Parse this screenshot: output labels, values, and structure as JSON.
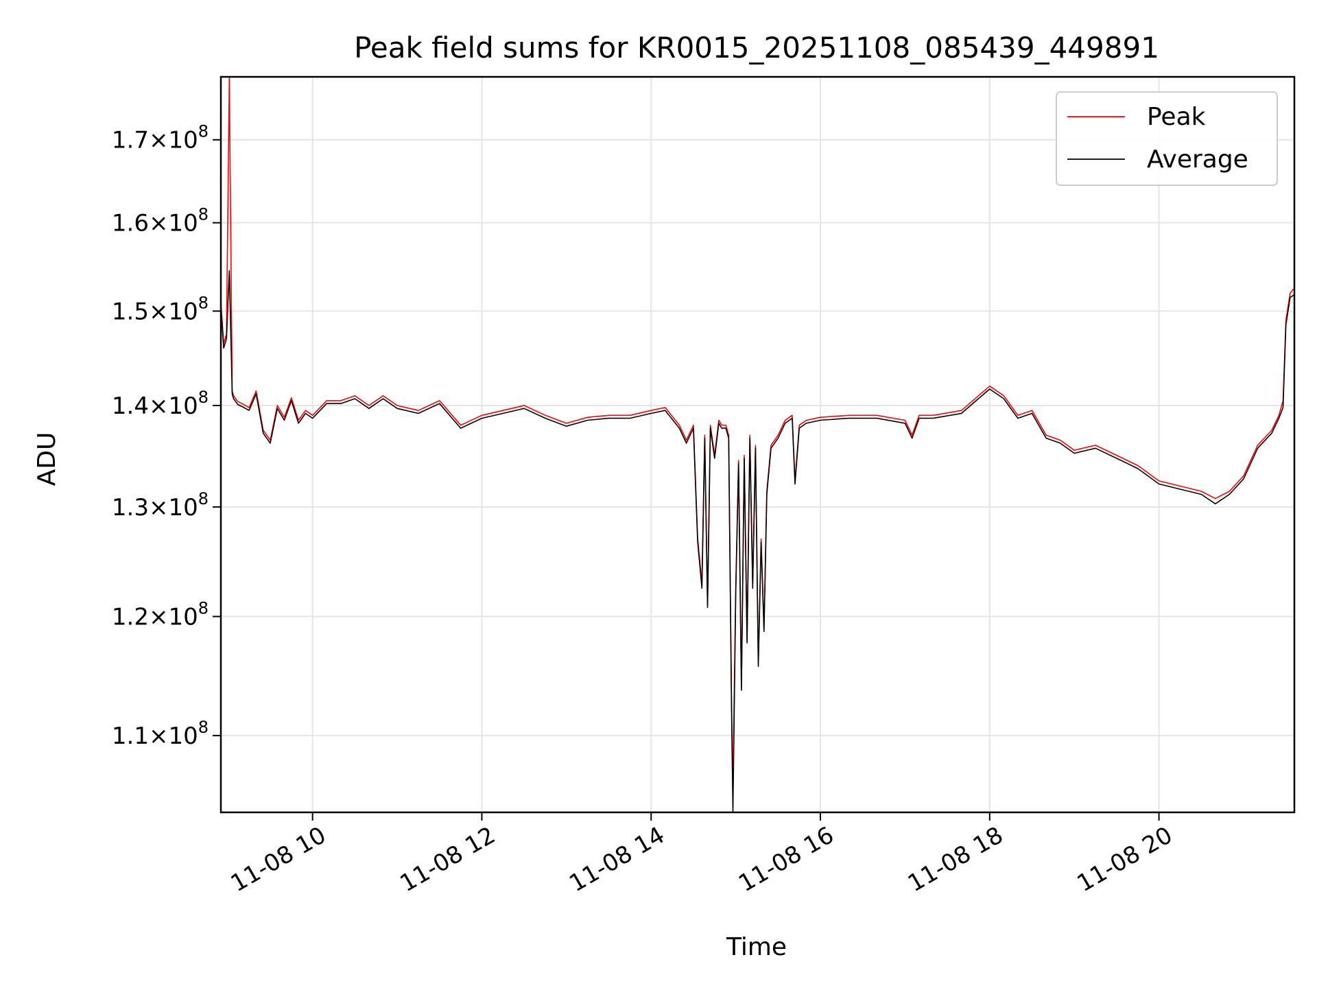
{
  "chart_data": {
    "type": "line",
    "title": "Peak field sums for KR0015_20251108_085439_449891",
    "xlabel": "Time",
    "ylabel": "ADU",
    "x_range": [
      "2025-11-08 08:55",
      "2025-11-08 21:36"
    ],
    "ylim": [
      104000000,
      178000000
    ],
    "yscale": "log",
    "grid": true,
    "legend_position": "upper right",
    "x_ticks": [
      "11-08 10",
      "11-08 12",
      "11-08 14",
      "11-08 16",
      "11-08 18",
      "11-08 20"
    ],
    "y_ticks": [
      {
        "value": 110000000,
        "mantissa": "1.1",
        "exponent": "8"
      },
      {
        "value": 120000000,
        "mantissa": "1.2",
        "exponent": "8"
      },
      {
        "value": 130000000,
        "mantissa": "1.3",
        "exponent": "8"
      },
      {
        "value": 140000000,
        "mantissa": "1.4",
        "exponent": "8"
      },
      {
        "value": 150000000,
        "mantissa": "1.5",
        "exponent": "8"
      },
      {
        "value": 160000000,
        "mantissa": "1.6",
        "exponent": "8"
      },
      {
        "value": 170000000,
        "mantissa": "1.7",
        "exponent": "8"
      }
    ],
    "series": [
      {
        "name": "Peak",
        "color": "#ff0000",
        "x": [
          "08:55",
          "08:57",
          "08:59",
          "09:01",
          "09:03",
          "09:04",
          "09:05",
          "09:06",
          "09:07",
          "09:10",
          "09:15",
          "09:20",
          "09:25",
          "09:30",
          "09:35",
          "09:40",
          "09:45",
          "09:50",
          "09:55",
          "10:00",
          "10:10",
          "10:20",
          "10:30",
          "10:40",
          "10:50",
          "11:00",
          "11:15",
          "11:30",
          "11:45",
          "12:00",
          "12:15",
          "12:30",
          "12:45",
          "13:00",
          "13:15",
          "13:30",
          "13:45",
          "14:00",
          "14:10",
          "14:20",
          "14:25",
          "14:30",
          "14:33",
          "14:36",
          "14:38",
          "14:40",
          "14:42",
          "14:45",
          "14:48",
          "14:50",
          "14:53",
          "14:55",
          "14:57",
          "14:58",
          "15:00",
          "15:02",
          "15:04",
          "15:06",
          "15:08",
          "15:10",
          "15:12",
          "15:14",
          "15:16",
          "15:18",
          "15:20",
          "15:22",
          "15:25",
          "15:30",
          "15:35",
          "15:40",
          "15:42",
          "15:45",
          "15:50",
          "16:00",
          "16:20",
          "16:40",
          "17:00",
          "17:05",
          "17:10",
          "17:20",
          "17:40",
          "18:00",
          "18:10",
          "18:20",
          "18:30",
          "18:40",
          "18:50",
          "19:00",
          "19:15",
          "19:30",
          "19:45",
          "20:00",
          "20:15",
          "20:30",
          "20:40",
          "20:50",
          "21:00",
          "21:10",
          "21:20",
          "21:25",
          "21:28",
          "21:30",
          "21:33",
          "21:36"
        ],
        "y": [
          151000000,
          146500000,
          147500000,
          178000000,
          141500000,
          141000000,
          140800000,
          140600000,
          140400000,
          140200000,
          139800000,
          141500000,
          137500000,
          136500000,
          140000000,
          138800000,
          140800000,
          138500000,
          139500000,
          139000000,
          140500000,
          140500000,
          141000000,
          140000000,
          141000000,
          140000000,
          139500000,
          140500000,
          138000000,
          139000000,
          139500000,
          140000000,
          139000000,
          138200000,
          138800000,
          139000000,
          139000000,
          139500000,
          139800000,
          138000000,
          136500000,
          138000000,
          127000000,
          123000000,
          137000000,
          121000000,
          138000000,
          135000000,
          138500000,
          138000000,
          138000000,
          137000000,
          112500000,
          106000000,
          122500000,
          134500000,
          114000000,
          135000000,
          118000000,
          137000000,
          123000000,
          136000000,
          116000000,
          127000000,
          119000000,
          131500000,
          136000000,
          137000000,
          138500000,
          139000000,
          132500000,
          138000000,
          138500000,
          138800000,
          139000000,
          139000000,
          138500000,
          137000000,
          139000000,
          139000000,
          139500000,
          142000000,
          141000000,
          139000000,
          139500000,
          137000000,
          136500000,
          135500000,
          136000000,
          135000000,
          134000000,
          132500000,
          132000000,
          131500000,
          130800000,
          131500000,
          133000000,
          136000000,
          137500000,
          139000000,
          140500000,
          149000000,
          152000000,
          152500000
        ]
      },
      {
        "name": "Average",
        "color": "#000000",
        "x": [
          "08:55",
          "08:57",
          "08:59",
          "09:01",
          "09:03",
          "09:04",
          "09:05",
          "09:06",
          "09:07",
          "09:10",
          "09:15",
          "09:20",
          "09:25",
          "09:30",
          "09:35",
          "09:40",
          "09:45",
          "09:50",
          "09:55",
          "10:00",
          "10:10",
          "10:20",
          "10:30",
          "10:40",
          "10:50",
          "11:00",
          "11:15",
          "11:30",
          "11:45",
          "12:00",
          "12:15",
          "12:30",
          "12:45",
          "13:00",
          "13:15",
          "13:30",
          "13:45",
          "14:00",
          "14:10",
          "14:20",
          "14:25",
          "14:30",
          "14:33",
          "14:36",
          "14:38",
          "14:40",
          "14:42",
          "14:45",
          "14:48",
          "14:50",
          "14:53",
          "14:55",
          "14:57",
          "14:58",
          "15:00",
          "15:02",
          "15:04",
          "15:06",
          "15:08",
          "15:10",
          "15:12",
          "15:14",
          "15:16",
          "15:18",
          "15:20",
          "15:22",
          "15:25",
          "15:30",
          "15:35",
          "15:40",
          "15:42",
          "15:45",
          "15:50",
          "16:00",
          "16:20",
          "16:40",
          "17:00",
          "17:05",
          "17:10",
          "17:20",
          "17:40",
          "18:00",
          "18:10",
          "18:20",
          "18:30",
          "18:40",
          "18:50",
          "19:00",
          "19:15",
          "19:30",
          "19:45",
          "20:00",
          "20:15",
          "20:30",
          "20:40",
          "20:50",
          "21:00",
          "21:10",
          "21:20",
          "21:25",
          "21:28",
          "21:30",
          "21:33",
          "21:36"
        ],
        "y": [
          150500000,
          146000000,
          147000000,
          154500000,
          141200000,
          140700000,
          140500000,
          140300000,
          140100000,
          139900000,
          139500000,
          141200000,
          137200000,
          136200000,
          139700000,
          138500000,
          140500000,
          138200000,
          139200000,
          138700000,
          140200000,
          140200000,
          140700000,
          139700000,
          140700000,
          139700000,
          139200000,
          140200000,
          137700000,
          138700000,
          139200000,
          139700000,
          138700000,
          137900000,
          138500000,
          138700000,
          138700000,
          139200000,
          139500000,
          137700000,
          136200000,
          137700000,
          126700000,
          122500000,
          136700000,
          120800000,
          137700000,
          134700000,
          138200000,
          137700000,
          137700000,
          136700000,
          112000000,
          104000000,
          122000000,
          134200000,
          113700000,
          134700000,
          117700000,
          136700000,
          122500000,
          135700000,
          115700000,
          126700000,
          118700000,
          131200000,
          135700000,
          136700000,
          138200000,
          138700000,
          132200000,
          137700000,
          138200000,
          138500000,
          138700000,
          138700000,
          138200000,
          136700000,
          138700000,
          138700000,
          139200000,
          141700000,
          140700000,
          138700000,
          139200000,
          136700000,
          136200000,
          135200000,
          135700000,
          134700000,
          133700000,
          132200000,
          131700000,
          131200000,
          130300000,
          131200000,
          132700000,
          135700000,
          137200000,
          138700000,
          139800000,
          148500000,
          151500000,
          151800000
        ]
      }
    ]
  }
}
